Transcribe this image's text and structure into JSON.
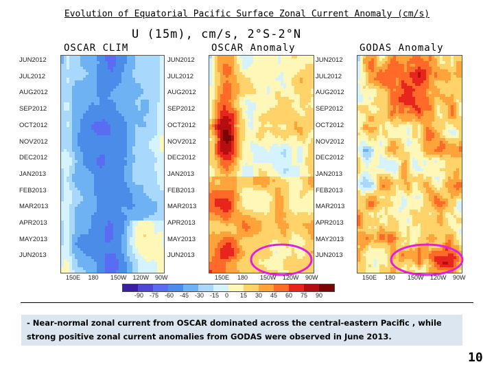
{
  "title": "Evolution of Equatorial Pacific Surface Zonal Current Anomaly (cm/s)",
  "chart_data": {
    "type": "heatmap",
    "subtitle": "U (15m), cm/s, 2°S-2°N",
    "panels": [
      {
        "label": "OSCAR CLIM",
        "pattern": "clim"
      },
      {
        "label": "OSCAR Anomaly",
        "pattern": "oscar"
      },
      {
        "label": "GODAS Anomaly",
        "pattern": "godas"
      }
    ],
    "y_labels_panel1": [
      "JUN2012",
      "JUL2012",
      "AUG2012",
      "SEP2012",
      "OCT2012",
      "NOV2012",
      "DEC2012",
      "JAN2013",
      "FEB2013",
      "MAR2013",
      "APR2013",
      "MAY2013",
      "JUN2013"
    ],
    "y_labels_panel2": [
      "JUN2012",
      "JUL2012",
      "AUG2012",
      "SEP2012",
      "OCT2012",
      "NOV2012",
      "DEC2012",
      "JAN2013",
      "FEB2013",
      "MAR2013",
      "APR2013",
      "MAY2013",
      "JUN2013"
    ],
    "y_labels_panel3": [
      "JUN2012",
      "JUL2012",
      "AUG2012",
      "SEP2012",
      "OCT2012",
      "NOV2012",
      "DEC2012",
      "JAN2013",
      "FEB2013",
      "MAR2013",
      "APR2013",
      "MAY2013",
      "JUN2013"
    ],
    "x_labels": [
      "150E",
      "180",
      "150W",
      "120W",
      "90W"
    ],
    "colorbar": {
      "ticks": [
        "-90",
        "-75",
        "-60",
        "-45",
        "-30",
        "-15",
        "0",
        "15",
        "30",
        "45",
        "60",
        "75",
        "90"
      ],
      "colors": [
        "#3c1fa0",
        "#4f48d6",
        "#5a6cf2",
        "#4a8ce8",
        "#6fb2f4",
        "#a8d8fb",
        "#d5f3ff",
        "#fff7b8",
        "#ffd36a",
        "#ffa33a",
        "#ff6a28",
        "#e8241c",
        "#b40e10",
        "#7a0505"
      ]
    },
    "highlight": "June 2013, 150W-90W (magenta ellipses on OSCAR and GODAS anomaly panels)"
  },
  "note": "- Near-normal zonal current from OSCAR dominated across the central-eastern Pacific , while strong positive zonal current anomalies from GODAS were observed  in June 2013.",
  "page_number": "10"
}
